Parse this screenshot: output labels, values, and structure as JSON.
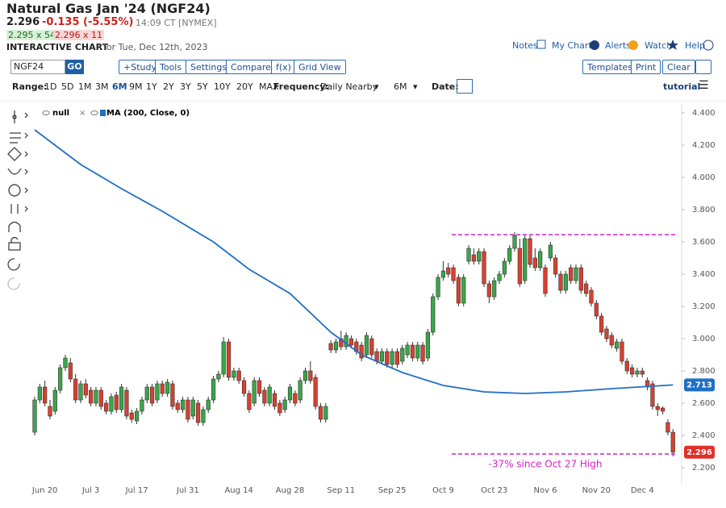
{
  "header": {
    "title": "Natural Gas Jan '24 (NGF24)",
    "last": "2.296",
    "change": "-0.135 (-5.55%)",
    "time": "14:09 CT [NYMEX]",
    "bid": "2.295 x 54",
    "ask": "2.296 x 11",
    "chart_label": "INTERACTIVE CHART",
    "chart_date": "for Tue, Dec 12th, 2023",
    "links": [
      "Notes",
      "My Charts",
      "Alerts",
      "Watch",
      "Help"
    ]
  },
  "toolbar": {
    "symbol": "NGF24",
    "go": "GO",
    "buttons": [
      "+Study",
      "Tools",
      "Settings",
      "Compare",
      "f(x)",
      "Grid View"
    ],
    "right_buttons": [
      "Templates",
      "Print",
      "Clear"
    ]
  },
  "range_bar": {
    "range_label": "Range:",
    "ranges": [
      "1D",
      "5D",
      "1M",
      "3M",
      "6M",
      "9M",
      "1Y",
      "2Y",
      "3Y",
      "5Y",
      "10Y",
      "20Y",
      "MAX"
    ],
    "active_range": "6M",
    "frequency_label": "Frequency:",
    "frequency": "Daily Nearby",
    "period": "6M",
    "date_label": "Date:",
    "tutorial": "tutorial"
  },
  "chart_data": {
    "type": "candlestick",
    "price_series_name": "null",
    "categories": [
      null,
      null,
      "Jun 20",
      null,
      null,
      null,
      null,
      null,
      null,
      null,
      null,
      "Jul 3",
      null,
      null,
      null,
      null,
      null,
      null,
      null,
      null,
      "Jul 17",
      null,
      null,
      null,
      null,
      null,
      null,
      null,
      null,
      null,
      "Jul 31",
      null,
      null,
      null,
      null,
      null,
      null,
      null,
      null,
      null,
      "Aug 14",
      null,
      null,
      null,
      null,
      null,
      null,
      null,
      null,
      null,
      "Aug 28",
      null,
      null,
      null,
      null,
      null,
      null,
      null,
      null,
      null,
      "Sep 11",
      null,
      null,
      null,
      null,
      null,
      null,
      null,
      null,
      null,
      "Sep 25",
      null,
      null,
      null,
      null,
      null,
      null,
      null,
      null,
      null,
      "Oct 9",
      null,
      null,
      null,
      null,
      null,
      null,
      null,
      null,
      null,
      "Oct 23",
      null,
      null,
      null,
      null,
      null,
      null,
      null,
      null,
      null,
      "Nov 6",
      null,
      null,
      null,
      null,
      null,
      null,
      null,
      null,
      null,
      "Nov 20",
      null,
      null,
      null,
      null,
      null,
      null,
      null,
      null,
      "Dec 4",
      null,
      null,
      null,
      null,
      null,
      null
    ],
    "candles": [
      [
        2.42,
        2.64,
        2.4,
        2.62
      ],
      [
        2.62,
        2.72,
        2.6,
        2.7
      ],
      [
        2.7,
        2.74,
        2.58,
        2.6
      ],
      [
        2.58,
        2.62,
        2.5,
        2.52
      ],
      [
        2.55,
        2.7,
        2.53,
        2.68
      ],
      [
        2.68,
        2.84,
        2.66,
        2.82
      ],
      [
        2.82,
        2.9,
        2.8,
        2.88
      ],
      [
        2.85,
        2.88,
        2.73,
        2.75
      ],
      [
        2.75,
        2.78,
        2.6,
        2.62
      ],
      [
        2.62,
        2.74,
        2.6,
        2.72
      ],
      [
        2.72,
        2.75,
        2.63,
        2.65
      ],
      [
        2.68,
        2.7,
        2.58,
        2.6
      ],
      [
        2.6,
        2.7,
        2.58,
        2.68
      ],
      [
        2.68,
        2.7,
        2.56,
        2.58
      ],
      [
        2.6,
        2.62,
        2.53,
        2.55
      ],
      [
        2.55,
        2.66,
        2.53,
        2.64
      ],
      [
        2.65,
        2.67,
        2.54,
        2.56
      ],
      [
        2.56,
        2.72,
        2.54,
        2.7
      ],
      [
        2.68,
        2.7,
        2.5,
        2.52
      ],
      [
        2.54,
        2.56,
        2.48,
        2.5
      ],
      [
        2.49,
        2.57,
        2.47,
        2.55
      ],
      [
        2.55,
        2.64,
        2.53,
        2.62
      ],
      [
        2.62,
        2.72,
        2.6,
        2.7
      ],
      [
        2.7,
        2.72,
        2.58,
        2.6
      ],
      [
        2.62,
        2.74,
        2.6,
        2.72
      ],
      [
        2.72,
        2.74,
        2.64,
        2.66
      ],
      [
        2.66,
        2.75,
        2.64,
        2.73
      ],
      [
        2.72,
        2.74,
        2.56,
        2.58
      ],
      [
        2.6,
        2.62,
        2.54,
        2.56
      ],
      [
        2.56,
        2.64,
        2.54,
        2.62
      ],
      [
        2.62,
        2.64,
        2.48,
        2.5
      ],
      [
        2.52,
        2.64,
        2.5,
        2.62
      ],
      [
        2.6,
        2.62,
        2.46,
        2.48
      ],
      [
        2.48,
        2.58,
        2.46,
        2.56
      ],
      [
        2.56,
        2.64,
        2.54,
        2.62
      ],
      [
        2.62,
        2.77,
        2.6,
        2.75
      ],
      [
        2.75,
        2.8,
        2.73,
        2.78
      ],
      [
        2.78,
        3.01,
        2.76,
        2.98
      ],
      [
        2.98,
        3.0,
        2.74,
        2.76
      ],
      [
        2.76,
        2.82,
        2.74,
        2.8
      ],
      [
        2.8,
        2.82,
        2.72,
        2.74
      ],
      [
        2.74,
        2.76,
        2.64,
        2.66
      ],
      [
        2.66,
        2.68,
        2.54,
        2.56
      ],
      [
        2.6,
        2.76,
        2.58,
        2.74
      ],
      [
        2.74,
        2.76,
        2.64,
        2.66
      ],
      [
        2.68,
        2.7,
        2.58,
        2.6
      ],
      [
        2.6,
        2.72,
        2.58,
        2.7
      ],
      [
        2.66,
        2.68,
        2.56,
        2.58
      ],
      [
        2.6,
        2.62,
        2.52,
        2.54
      ],
      [
        2.56,
        2.64,
        2.54,
        2.62
      ],
      [
        2.62,
        2.72,
        2.6,
        2.7
      ],
      [
        2.66,
        2.68,
        2.58,
        2.6
      ],
      [
        2.62,
        2.76,
        2.6,
        2.74
      ],
      [
        2.74,
        2.82,
        2.72,
        2.8
      ],
      [
        2.8,
        2.86,
        2.72,
        2.74
      ],
      [
        2.76,
        2.78,
        2.56,
        2.58
      ],
      [
        2.58,
        2.6,
        2.48,
        2.5
      ],
      [
        2.5,
        2.6,
        2.48,
        2.58
      ],
      [
        2.97,
        2.99,
        2.91,
        2.93
      ],
      [
        2.93,
        3.0,
        2.91,
        2.98
      ],
      [
        3.0,
        3.05,
        2.93,
        2.95
      ],
      [
        2.95,
        3.04,
        2.93,
        3.02
      ],
      [
        3.0,
        3.02,
        2.94,
        2.96
      ],
      [
        2.98,
        3.0,
        2.9,
        2.92
      ],
      [
        2.96,
        2.98,
        2.86,
        2.88
      ],
      [
        2.9,
        3.04,
        2.88,
        3.02
      ],
      [
        3.0,
        3.02,
        2.88,
        2.9
      ],
      [
        2.92,
        2.94,
        2.84,
        2.86
      ],
      [
        2.86,
        2.94,
        2.84,
        2.92
      ],
      [
        2.92,
        2.94,
        2.82,
        2.84
      ],
      [
        2.84,
        2.94,
        2.82,
        2.92
      ],
      [
        2.92,
        2.94,
        2.82,
        2.84
      ],
      [
        2.86,
        2.96,
        2.84,
        2.94
      ],
      [
        2.9,
        2.98,
        2.88,
        2.96
      ],
      [
        2.96,
        2.98,
        2.86,
        2.88
      ],
      [
        2.88,
        2.98,
        2.86,
        2.96
      ],
      [
        2.96,
        2.98,
        2.84,
        2.86
      ],
      [
        2.88,
        3.06,
        2.86,
        3.04
      ],
      [
        3.04,
        3.28,
        3.02,
        3.26
      ],
      [
        3.26,
        3.4,
        3.24,
        3.38
      ],
      [
        3.38,
        3.48,
        3.36,
        3.42
      ],
      [
        3.44,
        3.47,
        3.38,
        3.4
      ],
      [
        3.44,
        3.46,
        3.34,
        3.36
      ],
      [
        3.38,
        3.4,
        3.2,
        3.22
      ],
      [
        3.22,
        3.4,
        3.2,
        3.38
      ],
      [
        3.48,
        3.58,
        3.46,
        3.56
      ],
      [
        3.52,
        3.56,
        3.46,
        3.48
      ],
      [
        3.48,
        3.56,
        3.46,
        3.54
      ],
      [
        3.54,
        3.56,
        3.32,
        3.34
      ],
      [
        3.34,
        3.36,
        3.22,
        3.26
      ],
      [
        3.26,
        3.38,
        3.24,
        3.36
      ],
      [
        3.36,
        3.42,
        3.34,
        3.4
      ],
      [
        3.4,
        3.5,
        3.38,
        3.48
      ],
      [
        3.48,
        3.58,
        3.46,
        3.56
      ],
      [
        3.56,
        3.66,
        3.54,
        3.64
      ],
      [
        3.56,
        3.62,
        3.32,
        3.34
      ],
      [
        3.36,
        3.64,
        3.34,
        3.62
      ],
      [
        3.62,
        3.64,
        3.44,
        3.46
      ],
      [
        3.5,
        3.56,
        3.42,
        3.44
      ],
      [
        3.44,
        3.56,
        3.42,
        3.54
      ],
      [
        3.44,
        3.46,
        3.26,
        3.28
      ],
      [
        3.5,
        3.6,
        3.48,
        3.58
      ],
      [
        3.5,
        3.52,
        3.38,
        3.4
      ],
      [
        3.4,
        3.42,
        3.28,
        3.3
      ],
      [
        3.3,
        3.42,
        3.28,
        3.4
      ],
      [
        3.44,
        3.46,
        3.34,
        3.36
      ],
      [
        3.36,
        3.46,
        3.34,
        3.44
      ],
      [
        3.44,
        3.46,
        3.28,
        3.3
      ],
      [
        3.34,
        3.36,
        3.26,
        3.28
      ],
      [
        3.3,
        3.32,
        3.2,
        3.22
      ],
      [
        3.22,
        3.24,
        3.12,
        3.14
      ],
      [
        3.14,
        3.16,
        3.02,
        3.04
      ],
      [
        3.06,
        3.08,
        2.98,
        3.0
      ],
      [
        3.02,
        3.04,
        2.94,
        2.96
      ],
      [
        2.94,
        3.0,
        2.92,
        2.98
      ],
      [
        2.98,
        3.0,
        2.84,
        2.86
      ],
      [
        2.86,
        2.88,
        2.78,
        2.8
      ],
      [
        2.82,
        2.84,
        2.76,
        2.78
      ],
      [
        2.78,
        2.82,
        2.76,
        2.8
      ],
      [
        2.8,
        2.82,
        2.76,
        2.78
      ],
      [
        2.74,
        2.76,
        2.68,
        2.7
      ],
      [
        2.72,
        2.74,
        2.56,
        2.58
      ],
      [
        2.58,
        2.6,
        2.52,
        2.56
      ],
      [
        2.57,
        2.58,
        2.53,
        2.55
      ],
      [
        2.48,
        2.5,
        2.4,
        2.42
      ],
      [
        2.42,
        2.44,
        2.27,
        2.296
      ]
    ],
    "up_color": "#3aa64a",
    "down_color": "#d9402f",
    "ma": {
      "name": "MA (200, Close, 0)",
      "color": "#1f6fc4",
      "x": [
        0,
        9,
        17,
        25,
        35,
        42,
        50,
        58,
        64,
        72,
        80,
        88,
        96,
        104,
        113,
        125
      ],
      "values": [
        4.295,
        4.08,
        3.93,
        3.79,
        3.6,
        3.43,
        3.28,
        3.04,
        2.9,
        2.79,
        2.71,
        2.67,
        2.66,
        2.67,
        2.69,
        2.713
      ]
    },
    "ylim": [
      2.1,
      4.46
    ],
    "yticks": [
      {
        "value": 2.2,
        "label": "2.200"
      },
      {
        "value": 2.4,
        "label": "2.400"
      },
      {
        "value": 2.6,
        "label": "2.600"
      },
      {
        "value": 2.8,
        "label": "2.800"
      },
      {
        "value": 3.0,
        "label": "3.000"
      },
      {
        "value": 3.2,
        "label": "3.200"
      },
      {
        "value": 3.4,
        "label": "3.400"
      },
      {
        "value": 3.6,
        "label": "3.600"
      },
      {
        "value": 3.8,
        "label": "3.800"
      },
      {
        "value": 4.0,
        "label": "4.000"
      },
      {
        "value": 4.2,
        "label": "4.200"
      },
      {
        "value": 4.4,
        "label": "4.400"
      }
    ],
    "grid": false,
    "price_tags": [
      {
        "value": 2.713,
        "color": "#1f6fc4"
      },
      {
        "value": 2.296,
        "color": "#e0302a"
      }
    ],
    "hlines": [
      {
        "value": 3.645,
        "color": "#d321c9"
      },
      {
        "value": 2.285,
        "color": "#d321c9"
      }
    ],
    "annotation": "-37% since Oct 27 High"
  }
}
